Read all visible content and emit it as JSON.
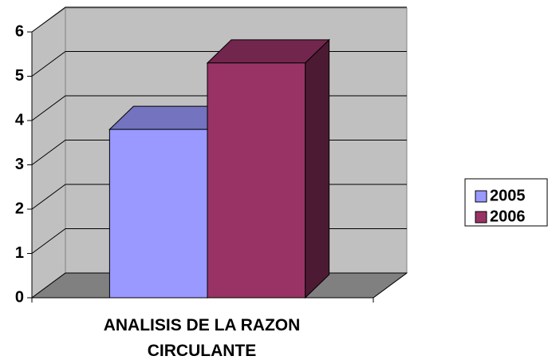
{
  "chart_data": {
    "type": "bar3d",
    "categories": [
      "ANALISIS DE LA RAZON CIRCULANTE"
    ],
    "series": [
      {
        "name": "2005",
        "color": "#9999ff",
        "values": [
          3.8
        ]
      },
      {
        "name": "2006",
        "color": "#993366",
        "values": [
          5.3
        ]
      }
    ],
    "ylim": [
      0,
      6
    ],
    "yticks": [
      0,
      1,
      2,
      3,
      4,
      5,
      6
    ],
    "grid": true,
    "legend": "right"
  }
}
